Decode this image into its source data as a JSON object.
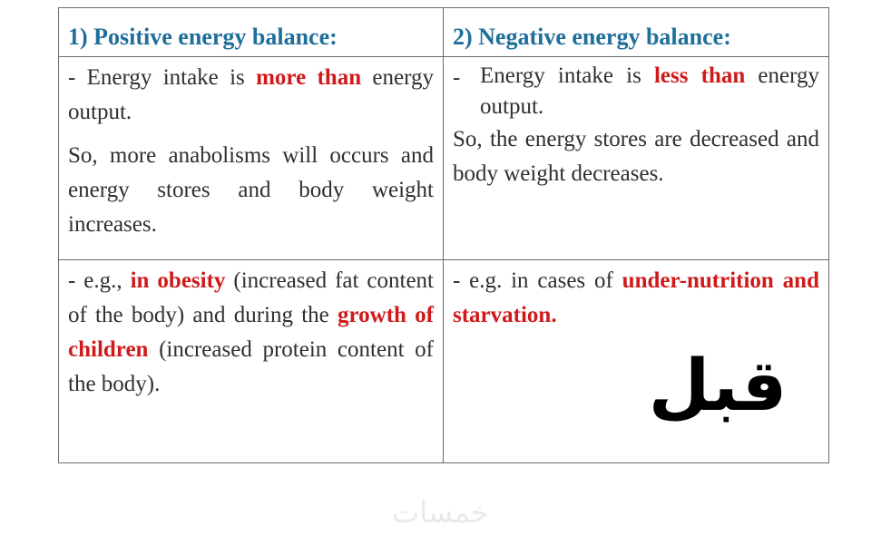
{
  "table": {
    "headers": [
      "1) Positive energy balance:",
      "2) Negative energy balance:"
    ],
    "positive": {
      "definition": {
        "pre": "- Energy intake is ",
        "highlight": "more than",
        "post": " energy output."
      },
      "effect": "So, more anabolisms will occurs and energy stores and body weight increases.",
      "examples": {
        "pre": "- e.g., ",
        "highlight1": "in obesity",
        "mid": " (increased fat content of the body) and during the ",
        "highlight2": "growth of children",
        "post": " (increased protein content of the body)."
      }
    },
    "negative": {
      "definition": {
        "dash": "-",
        "pre": "Energy intake is ",
        "highlight": "less than",
        "post": " energy output."
      },
      "effect": "So, the energy stores are decreased and body weight decreases.",
      "examples": {
        "pre": "- e.g. in cases of ",
        "highlight": "under-nutrition and starvation."
      }
    }
  },
  "stamp": {
    "text": "قبل"
  },
  "watermark": {
    "text": "خمسات"
  },
  "colors": {
    "header": "#1f6f9a",
    "highlight": "#d01a1a",
    "border": "#6b6b6b"
  }
}
